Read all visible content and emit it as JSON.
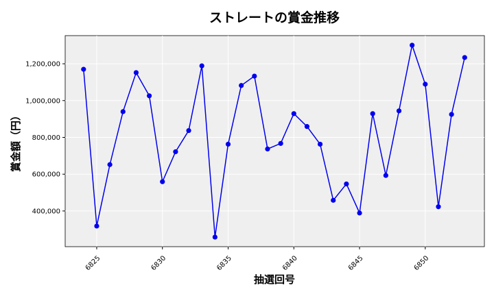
{
  "chart_data": {
    "type": "line",
    "title": "ストレートの賞金推移",
    "xlabel": "抽選回号",
    "ylabel": "賞金額（円）",
    "x": [
      6824,
      6825,
      6826,
      6827,
      6828,
      6829,
      6830,
      6831,
      6832,
      6833,
      6834,
      6835,
      6836,
      6837,
      6838,
      6839,
      6840,
      6841,
      6842,
      6843,
      6844,
      6845,
      6846,
      6847,
      6848,
      6849,
      6850,
      6851,
      6852,
      6853
    ],
    "series": [
      {
        "values": [
          1170000,
          318000,
          652000,
          940000,
          1152000,
          1026000,
          559000,
          722000,
          837000,
          1189000,
          258000,
          763000,
          1082000,
          1133000,
          737000,
          767000,
          929000,
          859000,
          763000,
          458000,
          547000,
          389000,
          929000,
          593000,
          944000,
          1301000,
          1089000,
          423000,
          925000,
          1234000
        ],
        "color": "#0000ee"
      }
    ],
    "xlim": [
      6822.6,
      6854.5
    ],
    "ylim": [
      206000,
      1353000
    ],
    "xticks": [
      6825,
      6830,
      6835,
      6840,
      6845,
      6850
    ],
    "xtick_labels": [
      "6825",
      "6830",
      "6835",
      "6840",
      "6845",
      "6850"
    ],
    "yticks": [
      400000,
      600000,
      800000,
      1000000,
      1200000
    ],
    "ytick_labels": [
      "400,000",
      "600,000",
      "800,000",
      "1,000,000",
      "1,200,000"
    ],
    "grid": true,
    "background": "#efefef"
  }
}
